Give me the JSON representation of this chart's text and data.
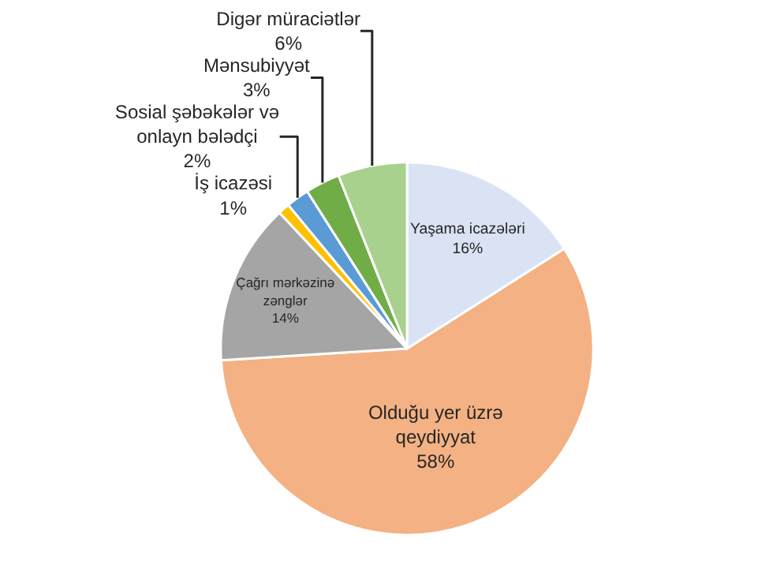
{
  "chart_data": {
    "type": "pie",
    "categories": [
      "Yaşama icazələri",
      "Olduğu yer üzrə\nqeydiyyat",
      "Çağrı mərkəzinə\nzənglər",
      "İş icazəsi",
      "Sosial şəbəkələr və\nonlayn bələdçi",
      "Mənsubiyyət",
      "Digər müraciətlər"
    ],
    "values": [
      16,
      58,
      14,
      1,
      2,
      3,
      6
    ],
    "value_labels": [
      "16%",
      "58%",
      "14%",
      "1%",
      "2%",
      "3%",
      "6%"
    ],
    "colors": [
      "#dae3f3",
      "#f4b183",
      "#a5a5a5",
      "#ffc000",
      "#5b9bd5",
      "#70ad47",
      "#a9d18e"
    ],
    "legend": false
  }
}
